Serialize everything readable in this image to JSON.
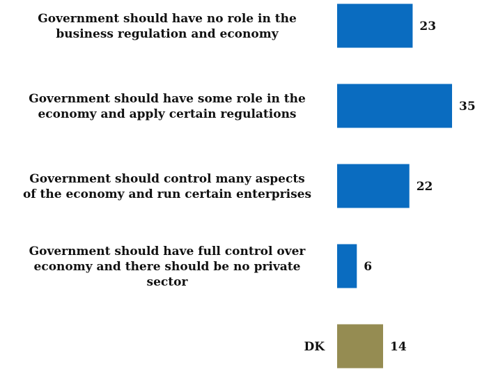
{
  "chart_data": {
    "type": "bar",
    "orientation": "horizontal",
    "categories": [
      [
        "Government should have no role in the",
        "business regulation and economy"
      ],
      [
        "Government should have some role in the",
        "economy and apply certain regulations"
      ],
      [
        "Government should control many aspects",
        "of the economy and run certain enterprises"
      ],
      [
        "Government should have full control over",
        "economy and there should be no private",
        "sector"
      ],
      [
        "DK"
      ]
    ],
    "values": [
      23,
      35,
      22,
      6,
      14
    ],
    "value_labels": [
      "23",
      "35",
      "22",
      "6",
      "14"
    ],
    "colors": [
      "#0a6cc0",
      "#0a6cc0",
      "#0a6cc0",
      "#0a6cc0",
      "#958c52"
    ],
    "title": "",
    "xlabel": "",
    "ylabel": "",
    "xlim": [
      0,
      35
    ],
    "grid": false,
    "legend": "none"
  }
}
